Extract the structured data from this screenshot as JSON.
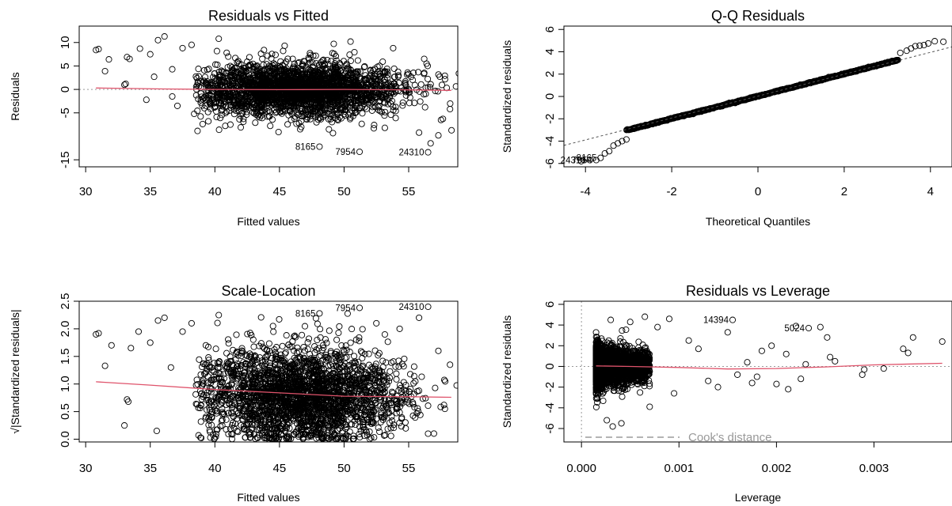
{
  "chart_data": [
    {
      "type": "scatter",
      "title": "Residuals vs Fitted",
      "xlabel": "Fitted values",
      "ylabel": "Residuals",
      "xlim": [
        29.5,
        58.8
      ],
      "ylim": [
        -16.5,
        13.5
      ],
      "xticks": [
        30,
        35,
        40,
        45,
        50,
        55
      ],
      "yticks": [
        -15,
        -5,
        0,
        5,
        10
      ],
      "hline": 0,
      "cloud": {
        "x_center": 46.5,
        "x_spread": 4.0,
        "y_center": 0,
        "y_spread": 2.8
      },
      "smooth": {
        "x": [
          30.8,
          36,
          40,
          45,
          50,
          55,
          58.3
        ],
        "y": [
          0.3,
          0.1,
          0.0,
          -0.05,
          0.0,
          -0.1,
          -0.2
        ]
      },
      "points": [
        {
          "x": 30.8,
          "y": 8.4
        },
        {
          "x": 31,
          "y": 8.6
        },
        {
          "x": 31.5,
          "y": 3.9
        },
        {
          "x": 31.8,
          "y": 6.4
        },
        {
          "x": 33,
          "y": 1.0
        },
        {
          "x": 33.1,
          "y": 1.2
        },
        {
          "x": 33.2,
          "y": 6.9
        },
        {
          "x": 33.4,
          "y": 6.5
        },
        {
          "x": 34.2,
          "y": 8.7
        },
        {
          "x": 35,
          "y": 7.5
        },
        {
          "x": 35.6,
          "y": 10.5
        },
        {
          "x": 36.1,
          "y": 11.3
        },
        {
          "x": 34.7,
          "y": -2.2
        },
        {
          "x": 35.3,
          "y": 2.7
        },
        {
          "x": 36.7,
          "y": 4.3
        },
        {
          "x": 37.5,
          "y": 8.8
        },
        {
          "x": 38.2,
          "y": 9.5
        },
        {
          "x": 36.7,
          "y": -1.5
        },
        {
          "x": 37.1,
          "y": -3.5
        },
        {
          "x": 38.4,
          "y": -5.2
        },
        {
          "x": 39.5,
          "y": -6.8
        },
        {
          "x": 40.3,
          "y": 10.8
        },
        {
          "x": 41.2,
          "y": -7.5
        },
        {
          "x": 49.2,
          "y": 9.7
        },
        {
          "x": 50.5,
          "y": 10.2
        },
        {
          "x": 53.8,
          "y": 8.8
        },
        {
          "x": 55.8,
          "y": -9.2
        },
        {
          "x": 56.7,
          "y": -11.5
        },
        {
          "x": 57.3,
          "y": -9.8
        },
        {
          "x": 58.2,
          "y": -4.2
        },
        {
          "x": 57.5,
          "y": -6.5
        },
        {
          "x": 56.2,
          "y": 6.5
        },
        {
          "x": 48.1,
          "y": -12.2
        },
        {
          "x": 51.2,
          "y": -13.3
        },
        {
          "x": 56.5,
          "y": -13.4
        },
        {
          "x": 43.8,
          "y": 8.4
        },
        {
          "x": 45.4,
          "y": 9.3
        },
        {
          "x": 52.3,
          "y": -8.3
        },
        {
          "x": 46.6,
          "y": -8.5
        }
      ],
      "annotations": [
        {
          "x": 48.1,
          "y": -12.2,
          "text": "8165"
        },
        {
          "x": 51.2,
          "y": -13.3,
          "text": "7954"
        },
        {
          "x": 56.5,
          "y": -13.4,
          "text": "24310"
        }
      ]
    },
    {
      "type": "scatter",
      "title": "Q-Q Residuals",
      "xlabel": "Theoretical Quantiles",
      "ylabel": "Standardized residuals",
      "xlim": [
        -4.5,
        4.5
      ],
      "ylim": [
        -6.3,
        6.3
      ],
      "xticks": [
        -4,
        -2,
        0,
        2,
        4
      ],
      "yticks": [
        -6,
        -4,
        -2,
        0,
        2,
        4,
        6
      ],
      "refline": {
        "slope": 0.98,
        "intercept": 0.03
      },
      "points": [
        {
          "x": -4.1,
          "y": -5.8
        },
        {
          "x": -3.9,
          "y": -5.7
        },
        {
          "x": -3.75,
          "y": -5.7
        },
        {
          "x": -3.65,
          "y": -5.5
        },
        {
          "x": -3.55,
          "y": -5.1
        },
        {
          "x": -3.45,
          "y": -4.9
        },
        {
          "x": -3.35,
          "y": -4.4
        },
        {
          "x": -3.25,
          "y": -4.2
        },
        {
          "x": -3.15,
          "y": -4.0
        },
        {
          "x": -3.05,
          "y": -3.85
        },
        {
          "x": 3.3,
          "y": 3.9
        },
        {
          "x": 3.45,
          "y": 4.1
        },
        {
          "x": 3.55,
          "y": 4.3
        },
        {
          "x": 3.65,
          "y": 4.5
        },
        {
          "x": 3.75,
          "y": 4.55
        },
        {
          "x": 3.85,
          "y": 4.6
        },
        {
          "x": 3.95,
          "y": 4.75
        },
        {
          "x": 4.1,
          "y": 4.95
        },
        {
          "x": 4.3,
          "y": 4.9
        }
      ],
      "annotations": [
        {
          "x": -3.65,
          "y": -5.5,
          "text": "8165"
        },
        {
          "x": -3.9,
          "y": -5.7,
          "text": "24310"
        },
        {
          "x": -3.75,
          "y": -5.7,
          "text": "7954"
        }
      ]
    },
    {
      "type": "scatter",
      "title": "Scale-Location",
      "xlabel": "Fitted values",
      "ylabel": "√|Standardized residuals|",
      "xlim": [
        29.5,
        58.8
      ],
      "ylim": [
        -0.05,
        2.5
      ],
      "xticks": [
        30,
        35,
        40,
        45,
        50,
        55
      ],
      "yticks": [
        0.0,
        0.5,
        1.0,
        1.5,
        2.0,
        2.5
      ],
      "cloud": {
        "x_center": 46.5,
        "x_spread": 4.0,
        "y_center": 0.8,
        "y_spread": 0.42
      },
      "smooth": {
        "x": [
          30.8,
          35,
          40,
          45,
          50,
          55,
          58.3
        ],
        "y": [
          1.04,
          0.98,
          0.9,
          0.84,
          0.78,
          0.77,
          0.76
        ]
      },
      "points": [
        {
          "x": 30.8,
          "y": 1.9
        },
        {
          "x": 31,
          "y": 1.92
        },
        {
          "x": 31.5,
          "y": 1.33
        },
        {
          "x": 32,
          "y": 1.7
        },
        {
          "x": 33,
          "y": 0.25
        },
        {
          "x": 33.2,
          "y": 0.72
        },
        {
          "x": 33.3,
          "y": 0.68
        },
        {
          "x": 33.5,
          "y": 1.65
        },
        {
          "x": 34.1,
          "y": 1.95
        },
        {
          "x": 35,
          "y": 1.75
        },
        {
          "x": 35.6,
          "y": 2.15
        },
        {
          "x": 36.1,
          "y": 2.2
        },
        {
          "x": 35.5,
          "y": 0.15
        },
        {
          "x": 36.6,
          "y": 1.3
        },
        {
          "x": 37.5,
          "y": 1.95
        },
        {
          "x": 38.2,
          "y": 2.1
        },
        {
          "x": 39.3,
          "y": 1.7
        },
        {
          "x": 40.3,
          "y": 2.25
        },
        {
          "x": 48.1,
          "y": 2.28
        },
        {
          "x": 51.2,
          "y": 2.38
        },
        {
          "x": 56.5,
          "y": 2.4
        },
        {
          "x": 54.3,
          "y": 2.0
        },
        {
          "x": 55.8,
          "y": 2.2
        },
        {
          "x": 57.3,
          "y": 1.6
        },
        {
          "x": 58.2,
          "y": 1.35
        },
        {
          "x": 57.8,
          "y": 0.55
        },
        {
          "x": 56.5,
          "y": 0.1
        },
        {
          "x": 44.5,
          "y": 2.05
        },
        {
          "x": 52.5,
          "y": 2.1
        }
      ],
      "annotations": [
        {
          "x": 48.1,
          "y": 2.28,
          "text": "8165"
        },
        {
          "x": 51.2,
          "y": 2.38,
          "text": "7954"
        },
        {
          "x": 56.5,
          "y": 2.4,
          "text": "24310"
        }
      ]
    },
    {
      "type": "scatter",
      "title": "Residuals vs Leverage",
      "xlabel": "Leverage",
      "ylabel": "Standardized residuals",
      "xlim": [
        -0.00018,
        0.0038
      ],
      "ylim": [
        -7.3,
        6.3
      ],
      "xticks": [
        0.0,
        0.001,
        0.002,
        0.003
      ],
      "xticklabels": [
        "0.000",
        "0.001",
        "0.002",
        "0.003"
      ],
      "yticks": [
        -6,
        -4,
        -2,
        0,
        2,
        4,
        6
      ],
      "hline": 0,
      "vline": 0,
      "cloud": {
        "x_min": 0.00015,
        "x_max": 0.0007,
        "y_center": 0,
        "y_spread": 1.1
      },
      "smooth": {
        "x": [
          0.00015,
          0.0005,
          0.001,
          0.0015,
          0.002,
          0.0025,
          0.003,
          0.0037
        ],
        "y": [
          0.05,
          0.0,
          -0.1,
          -0.25,
          -0.2,
          -0.05,
          0.15,
          0.3
        ]
      },
      "points": [
        {
          "x": 0.00155,
          "y": 4.5
        },
        {
          "x": 0.0022,
          "y": 3.9
        },
        {
          "x": 0.00233,
          "y": 3.7
        },
        {
          "x": 0.00245,
          "y": 3.8
        },
        {
          "x": 0.0037,
          "y": 2.4
        },
        {
          "x": 0.0034,
          "y": 2.8
        },
        {
          "x": 0.0033,
          "y": 1.7
        },
        {
          "x": 0.00335,
          "y": 1.3
        },
        {
          "x": 0.0029,
          "y": -0.3
        },
        {
          "x": 0.00288,
          "y": -0.8
        },
        {
          "x": 0.0031,
          "y": -0.2
        },
        {
          "x": 0.00252,
          "y": 2.8
        },
        {
          "x": 0.00255,
          "y": 0.9
        },
        {
          "x": 0.0026,
          "y": 0.5
        },
        {
          "x": 0.00212,
          "y": -2.2
        },
        {
          "x": 0.002,
          "y": -1.7
        },
        {
          "x": 0.00185,
          "y": 1.5
        },
        {
          "x": 0.0017,
          "y": 0.4
        },
        {
          "x": 0.0016,
          "y": -0.8
        },
        {
          "x": 0.0015,
          "y": 3.3
        },
        {
          "x": 0.0013,
          "y": -1.4
        },
        {
          "x": 0.0012,
          "y": 1.7
        },
        {
          "x": 0.0011,
          "y": 2.5
        },
        {
          "x": 0.0009,
          "y": 4.6
        },
        {
          "x": 0.00078,
          "y": 3.8
        },
        {
          "x": 0.00065,
          "y": 4.8
        },
        {
          "x": 0.0005,
          "y": 4.3
        },
        {
          "x": 0.0003,
          "y": 4.5
        },
        {
          "x": 0.00032,
          "y": -5.8
        },
        {
          "x": 0.00041,
          "y": -5.5
        },
        {
          "x": 0.00026,
          "y": -5.2
        },
        {
          "x": 0.0007,
          "y": -3.9
        },
        {
          "x": 0.00095,
          "y": -2.6
        },
        {
          "x": 0.0014,
          "y": -2.0
        },
        {
          "x": 0.0018,
          "y": -1.0
        },
        {
          "x": 0.00225,
          "y": -1.2
        },
        {
          "x": 0.0023,
          "y": 0.2
        },
        {
          "x": 0.0021,
          "y": 1.2
        },
        {
          "x": 0.00195,
          "y": 2.0
        },
        {
          "x": 0.00175,
          "y": -1.6
        }
      ],
      "annotations": [
        {
          "x": 0.00155,
          "y": 4.5,
          "text": "14394"
        },
        {
          "x": 0.00233,
          "y": 3.7,
          "text": "5024"
        }
      ],
      "legend": {
        "text": "Cook's distance",
        "placement": "bottom-left"
      }
    }
  ]
}
